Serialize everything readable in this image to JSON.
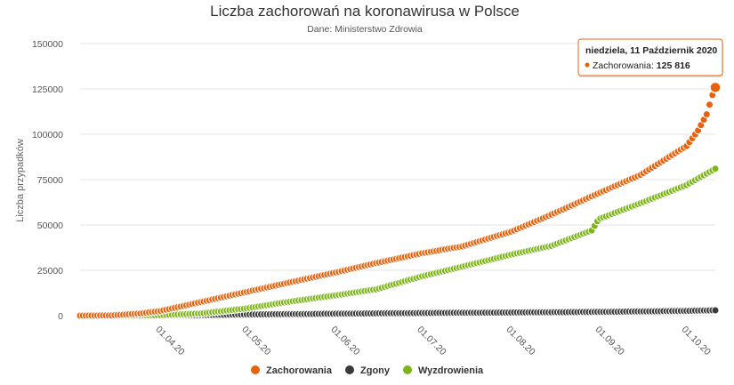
{
  "chart_data": {
    "type": "scatter",
    "title": "Liczba zachorowań na koronawirusa w Polsce",
    "subtitle": "Dane: Ministerstwo Zdrowia",
    "ylabel": "Liczba przypadków",
    "xlabel": "",
    "ylim": [
      0,
      150000
    ],
    "yticks": [
      "0",
      "25000",
      "50000",
      "75000",
      "100000",
      "125000",
      "150000"
    ],
    "x_range": [
      "2020-03-04",
      "2020-10-11"
    ],
    "xticks": [
      {
        "label": "01.04.20",
        "date": "2020-04-01"
      },
      {
        "label": "01.05.20",
        "date": "2020-05-01"
      },
      {
        "label": "01.06.20",
        "date": "2020-06-01"
      },
      {
        "label": "01.07.20",
        "date": "2020-07-01"
      },
      {
        "label": "01.08.20",
        "date": "2020-08-01"
      },
      {
        "label": "01.09.20",
        "date": "2020-09-01"
      },
      {
        "label": "01.10.20",
        "date": "2020-10-01"
      }
    ],
    "grid": "horizontal",
    "legend_position": "bottom-center",
    "series": [
      {
        "name": "Zachorowania",
        "color": "#e8620d",
        "points": [
          [
            "2020-03-04",
            0
          ],
          [
            "2020-03-15",
            120
          ],
          [
            "2020-03-25",
            1200
          ],
          [
            "2020-04-01",
            2600
          ],
          [
            "2020-04-15",
            7500
          ],
          [
            "2020-05-01",
            13100
          ],
          [
            "2020-05-15",
            18000
          ],
          [
            "2020-06-01",
            23800
          ],
          [
            "2020-06-15",
            29000
          ],
          [
            "2020-07-01",
            34400
          ],
          [
            "2020-07-15",
            38200
          ],
          [
            "2020-08-01",
            46300
          ],
          [
            "2020-08-15",
            55700
          ],
          [
            "2020-09-01",
            67900
          ],
          [
            "2020-09-15",
            77600
          ],
          [
            "2020-10-01",
            93500
          ],
          [
            "2020-10-05",
            102100
          ],
          [
            "2020-10-08",
            111000
          ],
          [
            "2020-10-09",
            116300
          ],
          [
            "2020-10-10",
            121600
          ],
          [
            "2020-10-11",
            125816
          ]
        ]
      },
      {
        "name": "Zgony",
        "color": "#3a3a3a",
        "points": [
          [
            "2020-03-04",
            0
          ],
          [
            "2020-04-01",
            40
          ],
          [
            "2020-04-15",
            250
          ],
          [
            "2020-05-01",
            650
          ],
          [
            "2020-06-01",
            1060
          ],
          [
            "2020-07-01",
            1460
          ],
          [
            "2020-08-01",
            1730
          ],
          [
            "2020-09-01",
            2060
          ],
          [
            "2020-10-01",
            2630
          ],
          [
            "2020-10-11",
            2960
          ]
        ]
      },
      {
        "name": "Wyzdrowienia",
        "color": "#7cb518",
        "points": [
          [
            "2020-03-04",
            0
          ],
          [
            "2020-03-20",
            20
          ],
          [
            "2020-04-01",
            200
          ],
          [
            "2020-04-15",
            1200
          ],
          [
            "2020-05-01",
            4000
          ],
          [
            "2020-05-15",
            7500
          ],
          [
            "2020-06-01",
            11200
          ],
          [
            "2020-06-15",
            14500
          ],
          [
            "2020-07-01",
            21700
          ],
          [
            "2020-07-15",
            27000
          ],
          [
            "2020-08-01",
            33700
          ],
          [
            "2020-08-15",
            38500
          ],
          [
            "2020-08-29",
            47000
          ],
          [
            "2020-08-31",
            52000
          ],
          [
            "2020-09-01",
            53600
          ],
          [
            "2020-09-15",
            62000
          ],
          [
            "2020-10-01",
            72000
          ],
          [
            "2020-10-11",
            81000
          ]
        ]
      }
    ],
    "tooltip": {
      "date": "niedziela, 11 Październik 2020",
      "series": "Zachorowania",
      "label": "Zachorowania:",
      "value": "125 816"
    }
  }
}
